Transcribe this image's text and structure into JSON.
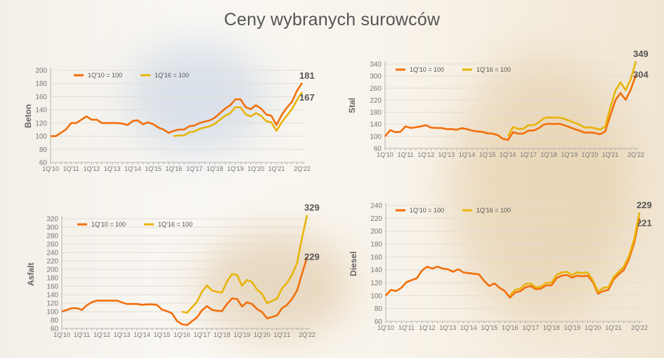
{
  "title": "Ceny wybranych surowców",
  "colors": {
    "series1": "#f26f0c",
    "series2": "#e8b40c",
    "grid": "#e2ddd6",
    "axis": "#b9b4ae"
  },
  "chart_data": [
    {
      "type": "line",
      "ylabel": "Beton",
      "ylim": [
        60,
        200
      ],
      "ystep": 20,
      "grid": true,
      "legend": "top-left",
      "xticks": [
        "1Q'10",
        "1Q'11",
        "1Q'12",
        "1Q'13",
        "1Q'14",
        "1Q'15",
        "1Q'16",
        "1Q'17",
        "1Q'18",
        "1Q'19",
        "1Q'20",
        "1Q'21",
        "2Q'22"
      ],
      "series": [
        {
          "name": "1Q'10 = 100",
          "start": "1Q'10",
          "end_label": "181",
          "values": [
            100,
            100,
            105,
            110,
            120,
            120,
            125,
            130,
            125,
            125,
            120,
            120,
            120,
            120,
            119,
            117,
            123,
            124,
            118,
            121,
            118,
            113,
            110,
            105,
            108,
            110,
            110,
            115,
            116,
            120,
            122,
            124,
            128,
            135,
            142,
            147,
            156,
            156,
            144,
            141,
            147,
            142,
            133,
            131,
            117,
            132,
            143,
            152,
            169,
            181
          ]
        },
        {
          "name": "1Q'16 = 100",
          "start": "1Q'16",
          "end_label": "167",
          "values": [
            100,
            101,
            101,
            106,
            107,
            111,
            113,
            115,
            119,
            125,
            131,
            135,
            144,
            144,
            133,
            130,
            135,
            131,
            123,
            121,
            108,
            121,
            131,
            141,
            155,
            167
          ]
        }
      ]
    },
    {
      "type": "line",
      "ylabel": "Stal",
      "ylim": [
        60,
        340
      ],
      "ystep": 40,
      "grid": true,
      "legend": "top-left",
      "xticks": [
        "1Q'10",
        "1Q'11",
        "1Q'12",
        "1Q'13",
        "1Q'14",
        "1Q'15",
        "1Q'16",
        "1Q'17",
        "1Q'18",
        "1Q'19",
        "1Q'20",
        "1Q'21",
        "2Q'22"
      ],
      "series": [
        {
          "name": "1Q'10 = 100",
          "start": "1Q'10",
          "end_label": "304",
          "values": [
            100,
            121,
            114,
            115,
            133,
            128,
            130,
            133,
            137,
            129,
            128,
            128,
            124,
            124,
            122,
            127,
            124,
            119,
            116,
            115,
            110,
            109,
            104,
            92,
            88,
            114,
            109,
            109,
            119,
            119,
            127,
            139,
            142,
            141,
            142,
            137,
            131,
            124,
            119,
            112,
            113,
            111,
            107,
            116,
            170,
            220,
            244,
            221,
            255,
            304
          ]
        },
        {
          "name": "1Q'16 = 100",
          "start": "1Q'16",
          "end_label": "349",
          "values": [
            100,
            131,
            125,
            125,
            137,
            137,
            146,
            160,
            163,
            162,
            163,
            158,
            152,
            145,
            139,
            129,
            130,
            127,
            122,
            133,
            195,
            252,
            279,
            253,
            290,
            349
          ]
        }
      ]
    },
    {
      "type": "line",
      "ylabel": "Asfalt",
      "ylim": [
        60,
        320
      ],
      "ystep": 20,
      "grid": true,
      "legend": "top-left",
      "xticks": [
        "1Q'10",
        "1Q'11",
        "1Q'12",
        "1Q'13",
        "1Q'14",
        "1Q'15",
        "1Q'16",
        "1Q'17",
        "1Q'18",
        "1Q'19",
        "1Q'20",
        "1Q'21",
        "2Q'22"
      ],
      "series": [
        {
          "name": "1Q'10 = 100",
          "start": "1Q'10",
          "end_label": "229",
          "values": [
            100,
            104,
            108,
            108,
            104,
            115,
            122,
            126,
            126,
            126,
            126,
            126,
            122,
            118,
            118,
            118,
            116,
            117,
            117,
            116,
            105,
            101,
            96,
            78,
            70,
            68,
            77,
            86,
            103,
            113,
            104,
            102,
            101,
            118,
            131,
            130,
            112,
            122,
            118,
            106,
            99,
            84,
            87,
            91,
            108,
            116,
            130,
            150,
            190,
            229
          ]
        },
        {
          "name": "1Q'16 = 100",
          "start": "1Q'16",
          "end_label": "329",
          "values": [
            100,
            97,
            110,
            123,
            147,
            162,
            150,
            147,
            145,
            171,
            189,
            187,
            161,
            175,
            170,
            152,
            142,
            120,
            125,
            131,
            155,
            168,
            187,
            215,
            275,
            329
          ]
        }
      ]
    },
    {
      "type": "line",
      "ylabel": "Diesel",
      "ylim": [
        60,
        240
      ],
      "ystep": 20,
      "grid": true,
      "legend": "top-left",
      "xticks": [
        "1Q'10",
        "1Q'11",
        "1Q'12",
        "1Q'13",
        "1Q'14",
        "1Q'15",
        "1Q'16",
        "1Q'17",
        "1Q'18",
        "1Q'19",
        "1Q'20",
        "1Q'21",
        "2Q'22"
      ],
      "series": [
        {
          "name": "1Q'10 = 100",
          "start": "1Q'10",
          "end_label": "221",
          "values": [
            100,
            109,
            107,
            112,
            121,
            124,
            127,
            139,
            145,
            142,
            145,
            142,
            141,
            137,
            141,
            136,
            135,
            134,
            133,
            123,
            115,
            119,
            112,
            107,
            97,
            105,
            107,
            113,
            115,
            110,
            111,
            116,
            116,
            127,
            131,
            132,
            128,
            131,
            130,
            131,
            121,
            103,
            107,
            109,
            125,
            133,
            140,
            157,
            182,
            221
          ]
        },
        {
          "name": "1Q'16 = 100",
          "start": "1Q'16",
          "end_label": "229",
          "values": [
            100,
            109,
            111,
            118,
            119,
            113,
            114,
            120,
            120,
            132,
            136,
            137,
            132,
            136,
            135,
            136,
            124,
            106,
            112,
            113,
            129,
            137,
            145,
            162,
            188,
            229
          ]
        }
      ]
    }
  ]
}
